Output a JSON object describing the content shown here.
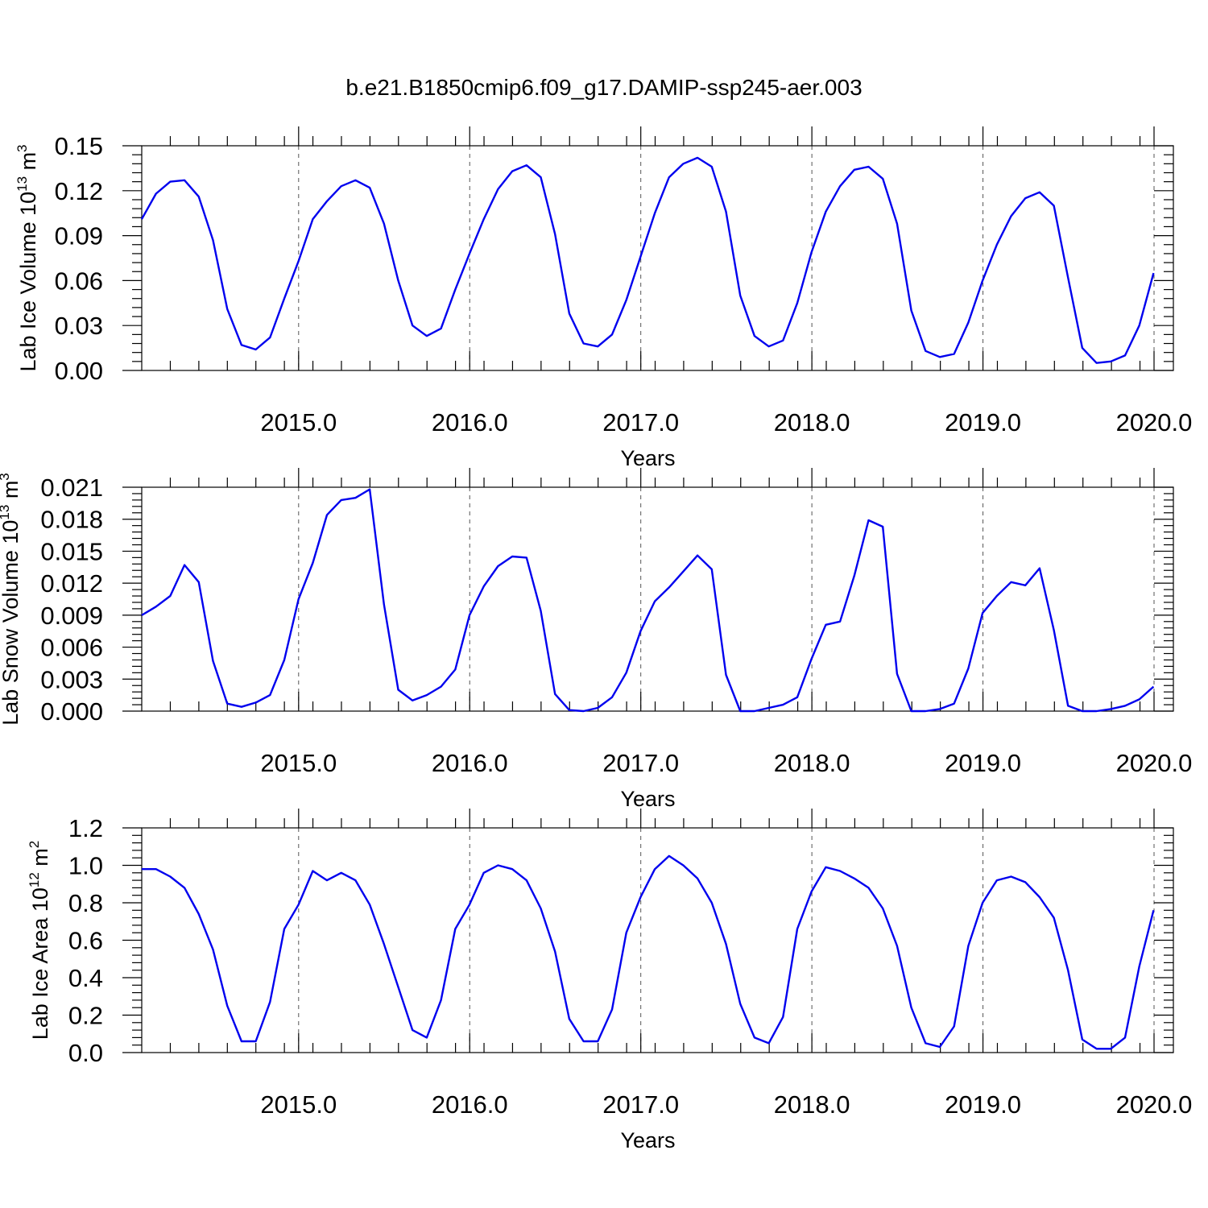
{
  "title": "b.e21.B1850cmip6.f09_g17.DAMIP-ssp245-aer.003",
  "colors": {
    "series": "#0000ee",
    "grid": "#555555"
  },
  "chart_data": [
    {
      "type": "line",
      "ylabel": {
        "main": "Lab Ice Volume 10",
        "sup": "13",
        "unit": " m",
        "unit_sup": "3"
      },
      "xlabel": "Years",
      "xlim": [
        2014.083,
        2020.0
      ],
      "ylim": [
        0.0,
        0.15
      ],
      "yticks": [
        "0.00",
        "0.03",
        "0.06",
        "0.09",
        "0.12",
        "0.15"
      ],
      "xticks": [
        "2015.0",
        "2016.0",
        "2017.0",
        "2018.0",
        "2019.0",
        "2020.0"
      ],
      "grid": "dashed vertical at years",
      "x_start": 2014.083,
      "x_step": 0.0833,
      "values": [
        0.101,
        0.118,
        0.126,
        0.127,
        0.116,
        0.087,
        0.041,
        0.017,
        0.014,
        0.022,
        0.048,
        0.073,
        0.101,
        0.113,
        0.123,
        0.127,
        0.122,
        0.098,
        0.06,
        0.03,
        0.023,
        0.028,
        0.054,
        0.078,
        0.101,
        0.121,
        0.133,
        0.137,
        0.129,
        0.091,
        0.038,
        0.018,
        0.016,
        0.024,
        0.047,
        0.076,
        0.105,
        0.129,
        0.138,
        0.142,
        0.136,
        0.106,
        0.05,
        0.023,
        0.016,
        0.02,
        0.045,
        0.079,
        0.106,
        0.123,
        0.134,
        0.136,
        0.128,
        0.098,
        0.04,
        0.013,
        0.009,
        0.011,
        0.032,
        0.06,
        0.084,
        0.103,
        0.115,
        0.119,
        0.11,
        0.062,
        0.015,
        0.005,
        0.006,
        0.01,
        0.03,
        0.065
      ]
    },
    {
      "type": "line",
      "ylabel": {
        "main": "Lab Snow Volume 10",
        "sup": "13",
        "unit": " m",
        "unit_sup": "3"
      },
      "xlabel": "Years",
      "xlim": [
        2014.083,
        2020.0
      ],
      "ylim": [
        0.0,
        0.021
      ],
      "yticks": [
        "0.000",
        "0.003",
        "0.006",
        "0.009",
        "0.012",
        "0.015",
        "0.018",
        "0.021"
      ],
      "xticks": [
        "2015.0",
        "2016.0",
        "2017.0",
        "2018.0",
        "2019.0",
        "2020.0"
      ],
      "grid": "dashed vertical at years",
      "x_start": 2014.083,
      "x_step": 0.0833,
      "values": [
        0.009,
        0.0098,
        0.0108,
        0.0137,
        0.0121,
        0.0047,
        0.0007,
        0.0004,
        0.0008,
        0.0015,
        0.0048,
        0.0105,
        0.0139,
        0.0184,
        0.0198,
        0.02,
        0.0208,
        0.01,
        0.002,
        0.001,
        0.0015,
        0.0023,
        0.0039,
        0.009,
        0.0117,
        0.0136,
        0.0145,
        0.0144,
        0.0094,
        0.0016,
        0.0001,
        0.0,
        0.0003,
        0.0013,
        0.0036,
        0.0075,
        0.0103,
        0.0116,
        0.0131,
        0.0146,
        0.0133,
        0.0034,
        0.0,
        0.0,
        0.0003,
        0.0006,
        0.0013,
        0.0049,
        0.0081,
        0.0084,
        0.0127,
        0.0179,
        0.0173,
        0.0035,
        0.0,
        0.0,
        0.0002,
        0.0007,
        0.004,
        0.0092,
        0.0108,
        0.0121,
        0.0118,
        0.0134,
        0.0076,
        0.0005,
        0.0,
        0.0,
        0.0002,
        0.0005,
        0.0011,
        0.0023
      ]
    },
    {
      "type": "line",
      "ylabel": {
        "main": "Lab Ice Area 10",
        "sup": "12",
        "unit": " m",
        "unit_sup": "2"
      },
      "xlabel": "Years",
      "xlim": [
        2014.083,
        2020.0
      ],
      "ylim": [
        0.0,
        1.2
      ],
      "yticks": [
        "0.0",
        "0.2",
        "0.4",
        "0.6",
        "0.8",
        "1.0",
        "1.2"
      ],
      "xticks": [
        "2015.0",
        "2016.0",
        "2017.0",
        "2018.0",
        "2019.0",
        "2020.0"
      ],
      "grid": "dashed vertical at years",
      "x_start": 2014.083,
      "x_step": 0.0833,
      "values": [
        0.98,
        0.98,
        0.94,
        0.88,
        0.74,
        0.55,
        0.25,
        0.06,
        0.06,
        0.27,
        0.66,
        0.79,
        0.97,
        0.92,
        0.96,
        0.92,
        0.79,
        0.58,
        0.35,
        0.12,
        0.08,
        0.28,
        0.66,
        0.79,
        0.96,
        1.0,
        0.98,
        0.92,
        0.77,
        0.54,
        0.18,
        0.06,
        0.06,
        0.23,
        0.64,
        0.83,
        0.98,
        1.05,
        1.0,
        0.93,
        0.8,
        0.58,
        0.26,
        0.08,
        0.05,
        0.19,
        0.66,
        0.86,
        0.99,
        0.97,
        0.93,
        0.88,
        0.77,
        0.57,
        0.24,
        0.05,
        0.03,
        0.14,
        0.57,
        0.8,
        0.92,
        0.94,
        0.91,
        0.83,
        0.72,
        0.44,
        0.07,
        0.02,
        0.02,
        0.08,
        0.46,
        0.76
      ]
    }
  ]
}
